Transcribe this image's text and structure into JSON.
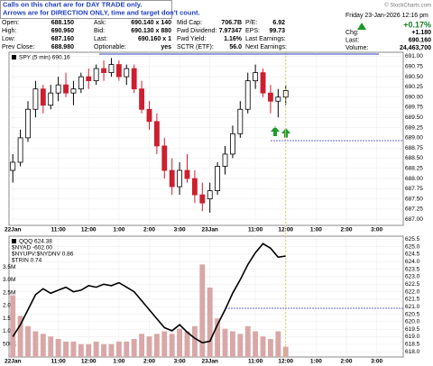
{
  "header": {
    "notice": [
      "Calls on this chart are for DAY TRADE only.",
      "Arrows are for DIRECTION ONLY, time and target don't count."
    ],
    "watermark": "© StockCharts.com",
    "rows": [
      [
        "Open:",
        "688.150",
        "Ask:",
        "690.140 x 140",
        "Mid Cap:",
        "706.7B",
        "P/E:",
        "6.92"
      ],
      [
        "High:",
        "690.960",
        "Bid:",
        "690.130 x 880",
        "Fwd Dividend:",
        "7.97347",
        "EPS:",
        "99.73"
      ],
      [
        "Low:",
        "687.160",
        "Last:",
        "690.160 x 1",
        "Fwd Yield:",
        "1.16%",
        "Last Earnings:"
      ],
      [
        "Prev Close:",
        "688.980",
        "Optionable:",
        "yes",
        "SCTR (ETF):",
        "56.0",
        "Next Earnings:"
      ]
    ],
    "date": "Friday 23-Jan-2026 12:16 pm",
    "change_pct": "+0.17%",
    "stats": [
      [
        "Chg:",
        "+1.180"
      ],
      [
        "Last:",
        "690.160"
      ],
      [
        "Volume:",
        "24,463,700"
      ]
    ]
  },
  "chart_data": [
    {
      "type": "candlestick",
      "categories": [
        "22Jan",
        null,
        null,
        null,
        null,
        null,
        "11:00",
        null,
        null,
        null,
        "12:00",
        null,
        null,
        null,
        "1:00",
        null,
        null,
        null,
        "2:00",
        null,
        null,
        null,
        "3:00",
        null,
        null,
        null,
        "23Jan",
        null,
        null,
        null,
        null,
        null,
        "11:00",
        null,
        null,
        null,
        "12:00",
        null,
        null,
        null,
        "1:00",
        null,
        null,
        null,
        "2:00",
        null,
        null,
        null,
        "3:00",
        null,
        null,
        null
      ],
      "series": [
        {
          "name": "SPY (5 min) 690.16",
          "up_color": "#000000",
          "down_color": "#cc1f2f",
          "open": [
            688.2,
            688.4,
            689.0,
            689.7,
            690.2,
            689.8,
            690.1,
            690.3,
            690.1,
            690.2,
            690.5,
            690.4,
            690.7,
            690.6,
            690.8,
            690.5,
            690.7,
            690.2,
            689.7,
            689.4,
            688.8,
            688.2,
            687.8,
            688.2,
            688.0,
            687.6,
            687.5,
            687.7,
            688.3,
            688.6,
            689.1,
            689.7,
            690.4,
            690.6,
            690.1,
            689.9,
            690.0,
            null,
            null,
            null,
            null,
            null,
            null,
            null,
            null,
            null,
            null,
            null,
            null,
            null,
            null,
            null
          ],
          "high": [
            688.6,
            689.2,
            689.9,
            690.4,
            690.3,
            690.3,
            690.5,
            690.6,
            690.4,
            690.6,
            690.7,
            690.8,
            690.9,
            690.96,
            690.9,
            690.8,
            690.8,
            690.4,
            689.9,
            689.6,
            689.0,
            688.5,
            688.4,
            688.6,
            688.2,
            687.9,
            687.9,
            688.4,
            688.8,
            689.3,
            689.9,
            690.6,
            690.8,
            690.7,
            690.3,
            690.2,
            690.3,
            null,
            null,
            null,
            null,
            null,
            null,
            null,
            null,
            null,
            null,
            null,
            null,
            null,
            null,
            null
          ],
          "low": [
            687.9,
            688.3,
            688.9,
            689.5,
            689.6,
            689.7,
            689.9,
            690.0,
            689.8,
            690.1,
            690.2,
            690.3,
            690.4,
            690.5,
            690.4,
            690.3,
            690.1,
            689.6,
            689.2,
            688.6,
            688.0,
            687.6,
            687.6,
            687.9,
            687.4,
            687.2,
            687.16,
            687.6,
            688.1,
            688.5,
            689.0,
            689.6,
            690.2,
            690.0,
            689.6,
            689.5,
            689.8,
            null,
            null,
            null,
            null,
            null,
            null,
            null,
            null,
            null,
            null,
            null,
            null,
            null,
            null,
            null
          ],
          "close": [
            688.4,
            689.0,
            689.7,
            690.2,
            689.8,
            690.1,
            690.3,
            690.1,
            690.2,
            690.5,
            690.4,
            690.7,
            690.6,
            690.8,
            690.5,
            690.7,
            690.2,
            689.7,
            689.4,
            688.8,
            688.2,
            687.8,
            688.2,
            688.0,
            687.6,
            687.4,
            687.7,
            688.3,
            688.6,
            689.1,
            689.7,
            690.4,
            690.6,
            690.1,
            689.9,
            690.0,
            690.16,
            null,
            null,
            null,
            null,
            null,
            null,
            null,
            null,
            null,
            null,
            null,
            null,
            null,
            null,
            null
          ]
        }
      ],
      "ylim": [
        686.85,
        691.1
      ],
      "yticks": [
        {
          "value": 687,
          "label": "687.00"
        },
        {
          "value": 687.25,
          "label": "687.25"
        },
        {
          "value": 687.5,
          "label": "687.50"
        },
        {
          "value": 687.75,
          "label": "687.75"
        },
        {
          "value": 688,
          "label": "688.00"
        },
        {
          "value": 688.25,
          "label": "688.25"
        },
        {
          "value": 688.5,
          "label": "688.50"
        },
        {
          "value": 688.75,
          "label": "688.75"
        },
        {
          "value": 689,
          "label": "689.00"
        },
        {
          "value": 689.25,
          "label": "689.25"
        },
        {
          "value": 689.5,
          "label": "689.50"
        },
        {
          "value": 689.75,
          "label": "689.75"
        },
        {
          "value": 690,
          "label": "690.00"
        },
        {
          "value": 690.25,
          "label": "690.25"
        },
        {
          "value": 690.5,
          "label": "690.50"
        },
        {
          "value": 690.75,
          "label": "690.75"
        },
        {
          "value": 691,
          "label": "691.00"
        }
      ],
      "grid": true
    },
    {
      "type": "line",
      "categories": [
        "22Jan",
        null,
        null,
        null,
        null,
        null,
        "11:00",
        null,
        null,
        null,
        "12:00",
        null,
        null,
        null,
        "1:00",
        null,
        null,
        null,
        "2:00",
        null,
        null,
        null,
        "3:00",
        null,
        null,
        null,
        "23Jan",
        null,
        null,
        null,
        null,
        null,
        "11:00",
        null,
        null,
        null,
        "12:00",
        null,
        null,
        null,
        "1:00",
        null,
        null,
        null,
        "2:00",
        null,
        null,
        null,
        "3:00",
        null,
        null,
        null
      ],
      "series": [
        {
          "name": "QQQ 624.38",
          "color": "#000000",
          "values": [
            619.0,
            619.8,
            620.8,
            621.8,
            622.2,
            621.9,
            622.1,
            622.3,
            622.0,
            622.1,
            622.4,
            622.3,
            622.5,
            622.4,
            622.6,
            622.3,
            622.0,
            621.4,
            620.8,
            620.2,
            619.6,
            619.4,
            619.8,
            619.3,
            618.9,
            618.6,
            618.7,
            619.8,
            620.8,
            621.9,
            622.8,
            623.8,
            624.6,
            625.2,
            624.9,
            624.3,
            624.38,
            null,
            null,
            null,
            null,
            null,
            null,
            null,
            null,
            null,
            null,
            null,
            null,
            null,
            null,
            null
          ]
        },
        {
          "type": "bar",
          "axis": "y2",
          "color": "#d9a7a7",
          "values": [
            2.4,
            1.6,
            1.2,
            1.0,
            0.9,
            0.8,
            0.7,
            0.6,
            0.6,
            0.5,
            0.5,
            0.6,
            0.5,
            0.5,
            0.6,
            0.6,
            0.7,
            0.9,
            0.8,
            0.9,
            1.0,
            0.9,
            1.1,
            1.0,
            1.2,
            3.6,
            2.7,
            1.5,
            1.1,
            1.0,
            0.9,
            1.2,
            1.0,
            0.8,
            0.7,
            1.0,
            0.4,
            null,
            null,
            null,
            null,
            null,
            null,
            null,
            null,
            null,
            null,
            null,
            null,
            null,
            null,
            null
          ]
        }
      ],
      "indicators": [
        "$NYAD -602.00",
        "$NYUPV:$NYDNV 0.86",
        "$TRIN 0.74"
      ],
      "ylim": [
        617.65,
        625.7
      ],
      "yticks": [
        {
          "value": 618,
          "label": "618.0"
        },
        618.5,
        {
          "value": 619,
          "label": "619.0"
        },
        619.5,
        {
          "value": 620,
          "label": "620.0"
        },
        620.5,
        {
          "value": 621,
          "label": "621.0"
        },
        621.5,
        {
          "value": 622,
          "label": "622.0"
        },
        622.5,
        {
          "value": 623,
          "label": "623.0"
        },
        623.5,
        {
          "value": 624,
          "label": "624.0"
        },
        624.5,
        {
          "value": 625,
          "label": "625.0"
        },
        625.5
      ],
      "y2lim": [
        0,
        4.7
      ],
      "y2ticks": [
        {
          "value": 0.5,
          "label": "500K"
        },
        {
          "value": 1,
          "label": "1.0M"
        },
        {
          "value": 1.5,
          "label": "1.5M"
        },
        {
          "value": 2,
          "label": "2.0M"
        },
        {
          "value": 2.5,
          "label": "2.5M"
        },
        {
          "value": 3,
          "label": "3.0M"
        },
        {
          "value": 3.5,
          "label": "3.5M"
        }
      ],
      "grid": true
    }
  ]
}
